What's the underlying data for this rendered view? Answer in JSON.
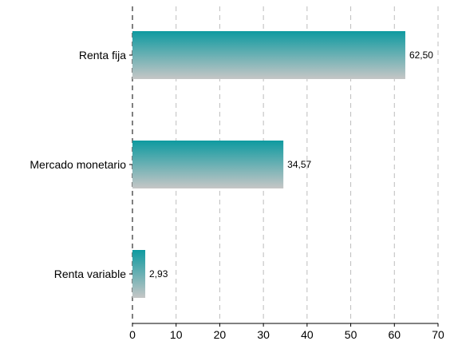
{
  "chart_data": {
    "type": "bar",
    "orientation": "horizontal",
    "categories": [
      "Renta fija",
      "Mercado monetario",
      "Renta variable"
    ],
    "values": [
      62.5,
      34.57,
      2.93
    ],
    "value_labels": [
      "62,50",
      "34,57",
      "2,93"
    ],
    "title": "",
    "xlabel": "",
    "ylabel": "",
    "xlim": [
      0,
      70
    ],
    "xticks": [
      0,
      10,
      20,
      30,
      40,
      50,
      60,
      70
    ],
    "xtick_labels": [
      "0",
      "10",
      "20",
      "30",
      "40",
      "50",
      "60",
      "70"
    ],
    "grid": "vertical dashed",
    "legend": "none",
    "colors": {
      "bar_top": "#0e9aa0",
      "bar_bottom": "#c6c6c6",
      "grid": "#bdbdbd",
      "axis": "#000000"
    }
  }
}
